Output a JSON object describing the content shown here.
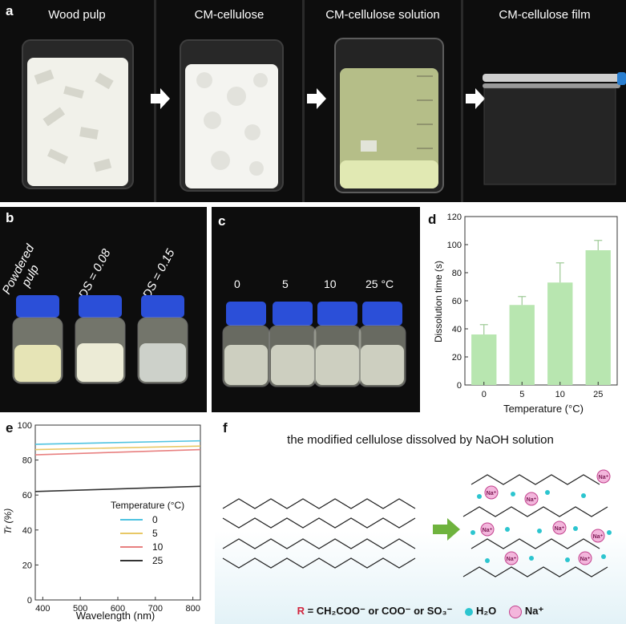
{
  "panel_labels": {
    "a": "a",
    "b": "b",
    "c": "c",
    "d": "d",
    "e": "e",
    "f": "f"
  },
  "panel_a": {
    "titles": [
      "Wood pulp",
      "CM-cellulose",
      "CM-cellulose solution",
      "CM-cellulose film"
    ]
  },
  "panel_b": {
    "labels": [
      "Powdered pulp",
      "DS = 0.08",
      "DS = 0.15"
    ]
  },
  "panel_c": {
    "labels": [
      "0",
      "5",
      "10",
      "25 °C"
    ]
  },
  "chart_data": [
    {
      "id": "d",
      "type": "bar",
      "categories": [
        "0",
        "5",
        "10",
        "25"
      ],
      "values": [
        36,
        57,
        73,
        96
      ],
      "errors": [
        7,
        6,
        14,
        7
      ],
      "ylabel": "Dissolution time (s)",
      "xlabel": "Temperature (°C)",
      "ylim": [
        0,
        120
      ],
      "yticks": [
        "0",
        "20",
        "40",
        "60",
        "80",
        "100",
        "120"
      ],
      "color": "#b8e6b0"
    },
    {
      "id": "e",
      "type": "line",
      "xlabel": "Wavelength (nm)",
      "ylabel": "Tr (%)",
      "xlim": [
        380,
        820
      ],
      "ylim": [
        0,
        100
      ],
      "xticks": [
        "400",
        "500",
        "600",
        "700",
        "800"
      ],
      "yticks": [
        "0",
        "20",
        "40",
        "60",
        "80",
        "100"
      ],
      "legend_title": "Temperature (°C)",
      "series": [
        {
          "name": "0",
          "color": "#4fc3e0",
          "x": [
            380,
            820
          ],
          "y": [
            89,
            91
          ]
        },
        {
          "name": "5",
          "color": "#e8c866",
          "x": [
            380,
            820
          ],
          "y": [
            86,
            88
          ]
        },
        {
          "name": "10",
          "color": "#e88080",
          "x": [
            380,
            820
          ],
          "y": [
            83,
            86
          ]
        },
        {
          "name": "25",
          "color": "#333333",
          "x": [
            380,
            820
          ],
          "y": [
            62,
            65
          ]
        }
      ]
    }
  ],
  "panel_f": {
    "title": "the modified cellulose dissolved by NaOH solution",
    "legend_r": "R",
    "legend_text": " = CH₂COO⁻ or COO⁻ or SO₃⁻",
    "legend_h2o": "H₂O",
    "legend_na": "Na⁺",
    "na_label": "Na⁺"
  }
}
